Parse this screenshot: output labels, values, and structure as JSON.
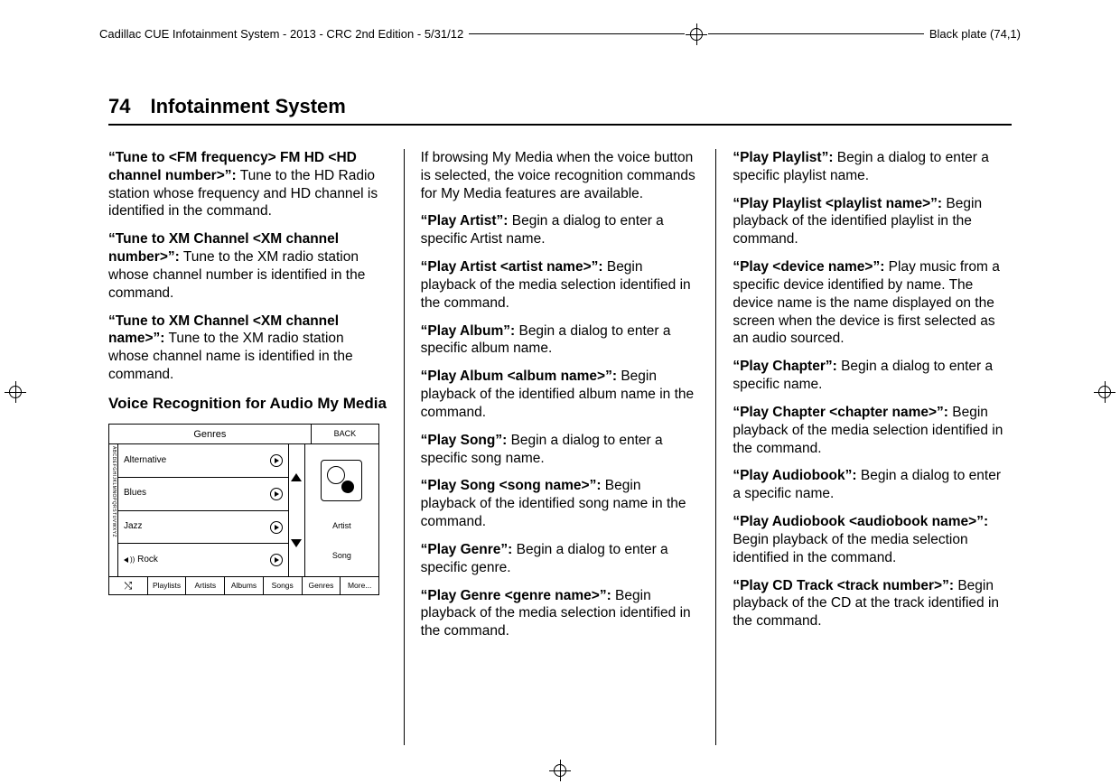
{
  "header": {
    "doc_info": "Cadillac CUE Infotainment System - 2013 - CRC 2nd Edition - 5/31/12",
    "plate": "Black plate (74,1)"
  },
  "page": {
    "number": "74",
    "section": "Infotainment System"
  },
  "col1": {
    "p1_cmd": "“Tune to <FM frequency> FM HD <HD channel number>”:",
    "p1_txt": "  Tune to the HD Radio station whose frequency and HD channel is identified in the command.",
    "p2_cmd": "“Tune to XM Channel <XM channel number>”:",
    "p2_txt": "  Tune to the XM radio station whose channel number is identified in the command.",
    "p3_cmd": "“Tune to XM Channel <XM channel name>”:",
    "p3_txt": "  Tune to the XM radio station whose channel name is identified in the command.",
    "subhead": "Voice Recognition for Audio My Media"
  },
  "screen": {
    "title": "Genres",
    "back": "BACK",
    "leftstrip": "ABCDEFGHIJKLMNOPQRSTUVWXYZ",
    "rows": [
      "Alternative",
      "Blues",
      "Jazz",
      "Rock"
    ],
    "right_labels": [
      "Artist",
      "Song"
    ],
    "bottom": [
      "Playlists",
      "Artists",
      "Albums",
      "Songs",
      "Genres",
      "More..."
    ]
  },
  "col2": {
    "intro": "If browsing My Media when the voice button is selected, the voice recognition commands for My Media features are available.",
    "items": [
      {
        "cmd": "“Play Artist”:",
        "txt": "  Begin a dialog to enter a specific Artist name."
      },
      {
        "cmd": "“Play Artist <artist name>”:",
        "txt": " Begin playback of the media selection identified in the command."
      },
      {
        "cmd": "“Play Album”:",
        "txt": "  Begin a dialog to enter a specific album name."
      },
      {
        "cmd": "“Play Album <album name>”:",
        "txt": " Begin playback of the identified album name in the command."
      },
      {
        "cmd": "“Play Song”:",
        "txt": "  Begin a dialog to enter a specific song name."
      },
      {
        "cmd": "“Play Song <song name>”:",
        "txt": "  Begin playback of the identified song name in the command."
      },
      {
        "cmd": "“Play Genre”:",
        "txt": "  Begin a dialog to enter a specific genre."
      },
      {
        "cmd": "“Play Genre <genre name>”:",
        "txt": " Begin playback of the media selection identified in the command."
      }
    ]
  },
  "col3": {
    "items": [
      {
        "cmd": "“Play Playlist”:",
        "txt": "  Begin a dialog to enter a specific playlist name."
      },
      {
        "cmd": "“Play Playlist <playlist name>”:",
        "txt": " Begin playback of the identified playlist in the command."
      },
      {
        "cmd": "“Play <device name>”:",
        "txt": "  Play music from a specific device identified by name. The device name is the name displayed on the screen when the device is first selected as an audio sourced."
      },
      {
        "cmd": "“Play Chapter”:",
        "txt": "  Begin a dialog to enter a specific name."
      },
      {
        "cmd": "“Play Chapter <chapter name>”:",
        "txt": " Begin playback of the media selection identified in the command."
      },
      {
        "cmd": "“Play Audiobook”:",
        "txt": "  Begin a dialog to enter a specific name."
      },
      {
        "cmd": "“Play Audiobook <audiobook name>”:",
        "txt": "  Begin playback of the media selection identified in the command."
      },
      {
        "cmd": "“Play CD Track <track number>”:",
        "txt": "  Begin playback of the CD at the track identified in the command."
      }
    ]
  }
}
